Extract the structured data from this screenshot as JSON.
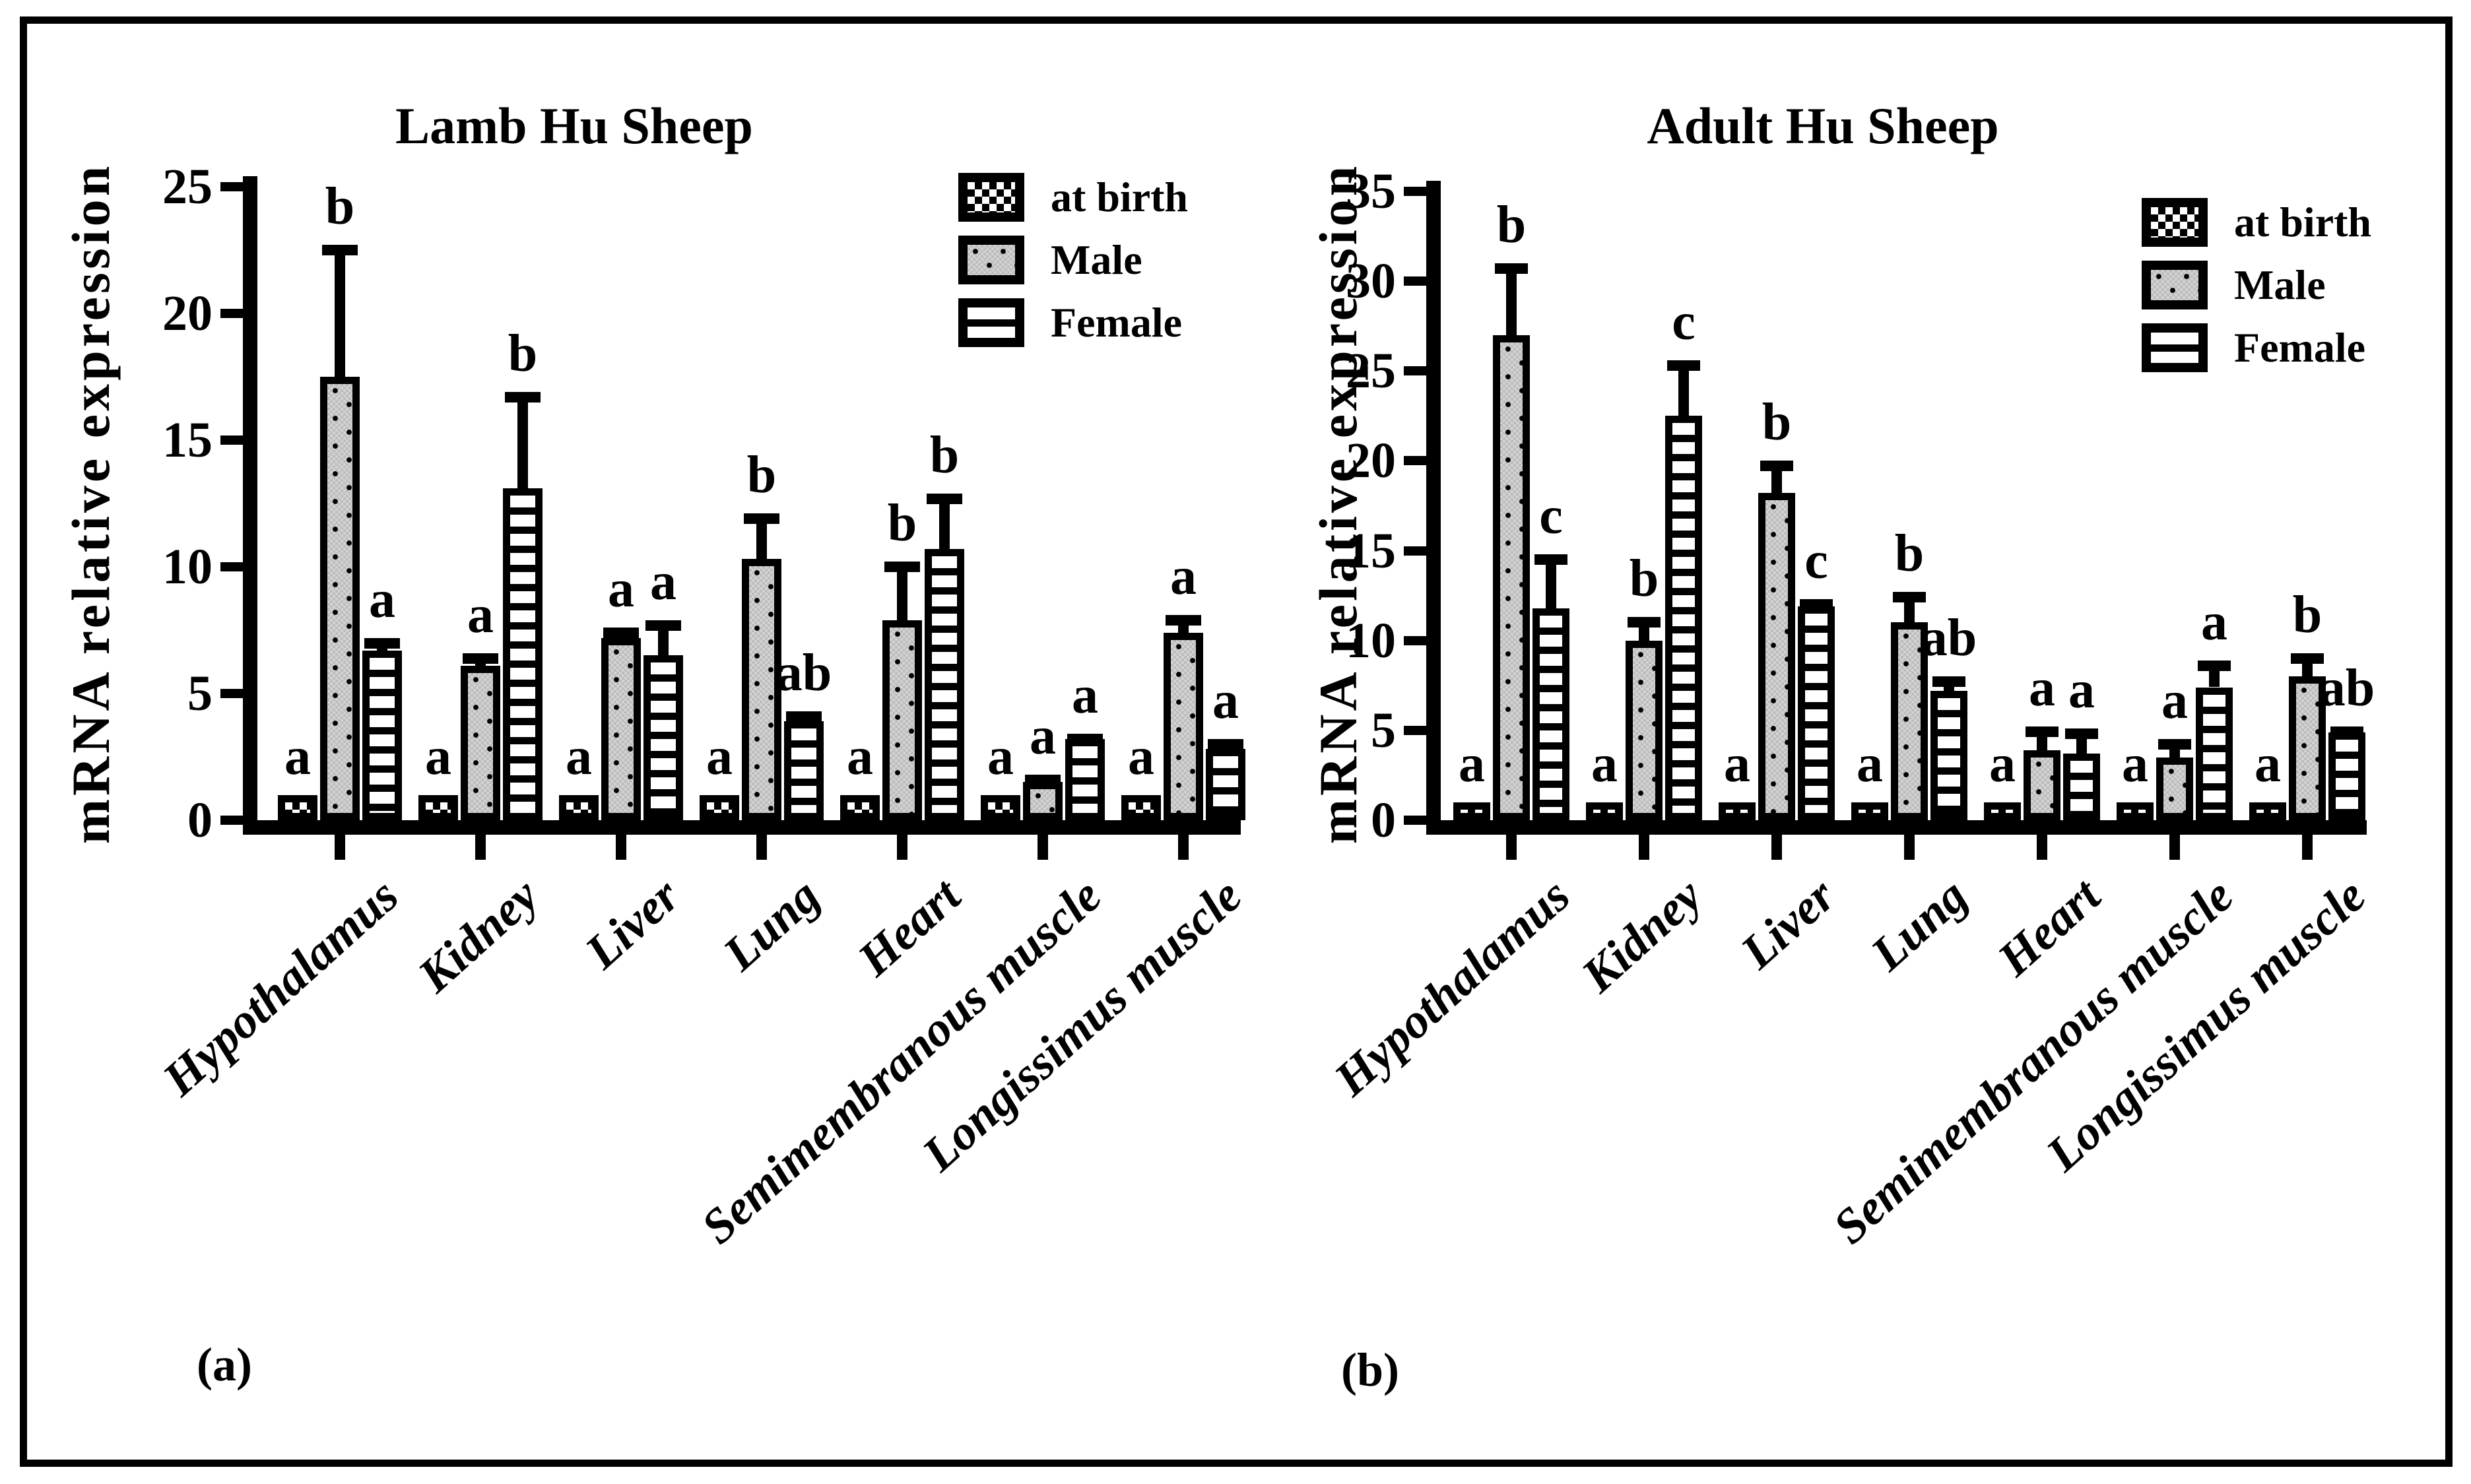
{
  "chart_data": [
    {
      "id": "lamb",
      "type": "bar",
      "title": "Lamb Hu Sheep",
      "panel_label": "(a)",
      "ylabel": "mRNA relative expression",
      "xlabel": "",
      "ylim": [
        0,
        25
      ],
      "yticks": [
        0,
        5,
        10,
        15,
        20,
        25
      ],
      "grid": false,
      "legend_position": "upper-right-inside",
      "categories": [
        "Hypothalamus",
        "Kidney",
        "Liver",
        "Lung",
        "Heart",
        "Semimembranous muscle",
        "Longissimus muscle"
      ],
      "series": [
        {
          "name": "at birth",
          "pattern": "checker",
          "values": [
            1,
            1,
            1,
            1,
            1,
            1,
            1
          ],
          "errors": [
            0,
            0,
            0,
            0,
            0,
            0,
            0
          ],
          "letters": [
            "a",
            "a",
            "a",
            "a",
            "a",
            "a",
            "a"
          ]
        },
        {
          "name": "Male",
          "pattern": "gray-dots",
          "values": [
            17.5,
            6.1,
            7.2,
            10.3,
            7.9,
            1.5,
            7.4
          ],
          "errors": [
            5.2,
            0.5,
            0.4,
            1.8,
            2.3,
            0.3,
            0.7
          ],
          "letters": [
            "b",
            "a",
            "a",
            "b",
            "b",
            "a",
            "a"
          ]
        },
        {
          "name": "Female",
          "pattern": "h-stripes",
          "values": [
            6.7,
            13.1,
            6.5,
            3.9,
            10.7,
            3.2,
            2.8
          ],
          "errors": [
            0.5,
            3.8,
            1.4,
            0.4,
            2.2,
            0.2,
            0.4
          ],
          "letters": [
            "a",
            "b",
            "a",
            "ab",
            "b",
            "a",
            "a"
          ]
        }
      ]
    },
    {
      "id": "adult",
      "type": "bar",
      "title": "Adult Hu Sheep",
      "panel_label": "(b)",
      "ylabel": "mRNA relative expression",
      "xlabel": "",
      "ylim": [
        0,
        35
      ],
      "yticks": [
        0,
        5,
        10,
        15,
        20,
        25,
        30,
        35
      ],
      "grid": false,
      "legend_position": "upper-right-inside",
      "categories": [
        "Hypothalamus",
        "Kidney",
        "Liver",
        "Lung",
        "Heart",
        "Semimembranous muscle",
        "Longissimus muscle"
      ],
      "series": [
        {
          "name": "at birth",
          "pattern": "checker",
          "values": [
            1,
            1,
            1,
            1,
            1,
            1,
            1
          ],
          "errors": [
            0,
            0,
            0,
            0,
            0,
            0,
            0
          ],
          "letters": [
            "a",
            "a",
            "a",
            "a",
            "a",
            "a",
            "a"
          ]
        },
        {
          "name": "Male",
          "pattern": "gray-dots",
          "values": [
            27,
            10,
            18.2,
            11,
            3.9,
            3.5,
            8
          ],
          "errors": [
            4,
            1.3,
            1.8,
            1.7,
            1.3,
            1,
            1.3
          ],
          "letters": [
            "b",
            "b",
            "b",
            "b",
            "a",
            "a",
            "b"
          ]
        },
        {
          "name": "Female",
          "pattern": "h-stripes",
          "values": [
            11.8,
            22.5,
            11.9,
            7.2,
            3.7,
            7.4,
            4.9
          ],
          "errors": [
            3,
            3.1,
            0.4,
            0.8,
            1.4,
            1.5,
            0.3
          ],
          "letters": [
            "c",
            "c",
            "c",
            "ab",
            "a",
            "a",
            "ab"
          ]
        }
      ]
    }
  ],
  "colors": {
    "ink": "#000000",
    "male_fill": "#c7c7c7",
    "background": "#ffffff"
  }
}
